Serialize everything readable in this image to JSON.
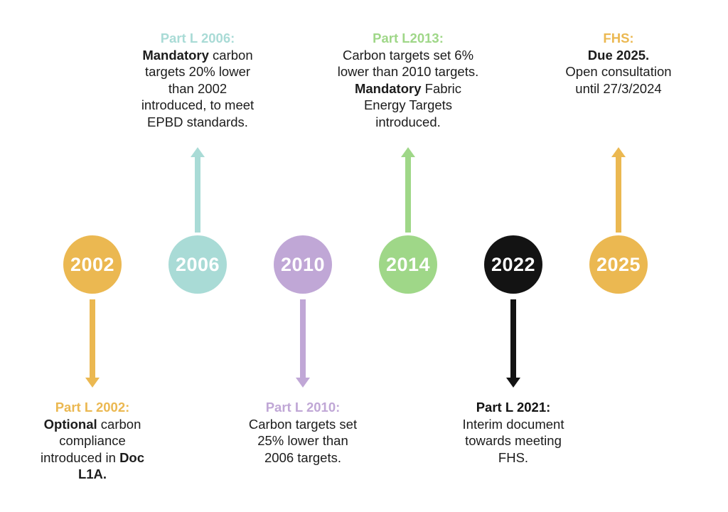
{
  "figure": {
    "type": "timeline",
    "orientation": "horizontal",
    "subject": "UK Part L building regulation carbon target milestones"
  },
  "colors": {
    "gold": "#EBB851",
    "teal": "#A9DBD6",
    "purple": "#C0A7D6",
    "green": "#9FD788",
    "black": "#131313",
    "body_text": "#1C1C1C",
    "year_text": "#FFFFFF",
    "background": "#FFFFFF"
  },
  "milestones": [
    {
      "year": "2002",
      "accent": "gold",
      "direction": "down",
      "heading": "Part L 2002:",
      "lines": [
        [
          {
            "t": "Optional",
            "b": true
          },
          {
            "t": " carbon",
            "b": false
          }
        ],
        [
          {
            "t": "compliance",
            "b": false
          }
        ],
        [
          {
            "t": "introduced in ",
            "b": false
          },
          {
            "t": "Doc",
            "b": true
          }
        ],
        [
          {
            "t": "L1A.",
            "b": true
          }
        ]
      ]
    },
    {
      "year": "2006",
      "accent": "teal",
      "direction": "up",
      "heading": "Part L 2006:",
      "lines": [
        [
          {
            "t": "Mandatory",
            "b": true
          },
          {
            "t": " carbon",
            "b": false
          }
        ],
        [
          {
            "t": "targets 20% lower",
            "b": false
          }
        ],
        [
          {
            "t": "than 2002",
            "b": false
          }
        ],
        [
          {
            "t": "introduced, to meet",
            "b": false
          }
        ],
        [
          {
            "t": "EPBD standards.",
            "b": false
          }
        ]
      ]
    },
    {
      "year": "2010",
      "accent": "purple",
      "direction": "down",
      "heading": "Part L 2010:",
      "lines": [
        [
          {
            "t": "Carbon targets set",
            "b": false
          }
        ],
        [
          {
            "t": "25% lower than",
            "b": false
          }
        ],
        [
          {
            "t": "2006 targets.",
            "b": false
          }
        ]
      ]
    },
    {
      "year": "2014",
      "accent": "green",
      "direction": "up",
      "heading": "Part L2013:",
      "lines": [
        [
          {
            "t": "Carbon targets set 6%",
            "b": false
          }
        ],
        [
          {
            "t": "lower than 2010 targets.",
            "b": false
          }
        ],
        [
          {
            "t": "Mandatory",
            "b": true
          },
          {
            "t": " Fabric",
            "b": false
          }
        ],
        [
          {
            "t": "Energy Targets",
            "b": false
          }
        ],
        [
          {
            "t": "introduced.",
            "b": false
          }
        ]
      ]
    },
    {
      "year": "2022",
      "accent": "black",
      "direction": "down",
      "heading": "Part L 2021:",
      "lines": [
        [
          {
            "t": "Interim document",
            "b": false
          }
        ],
        [
          {
            "t": "towards meeting",
            "b": false
          }
        ],
        [
          {
            "t": "FHS.",
            "b": false
          }
        ]
      ]
    },
    {
      "year": "2025",
      "accent": "gold",
      "direction": "up",
      "heading": "FHS:",
      "lines": [
        [
          {
            "t": "Due 2025.",
            "b": true
          }
        ],
        [
          {
            "t": "Open consultation",
            "b": false
          }
        ],
        [
          {
            "t": "until 27/3/2024",
            "b": false
          }
        ]
      ]
    }
  ]
}
